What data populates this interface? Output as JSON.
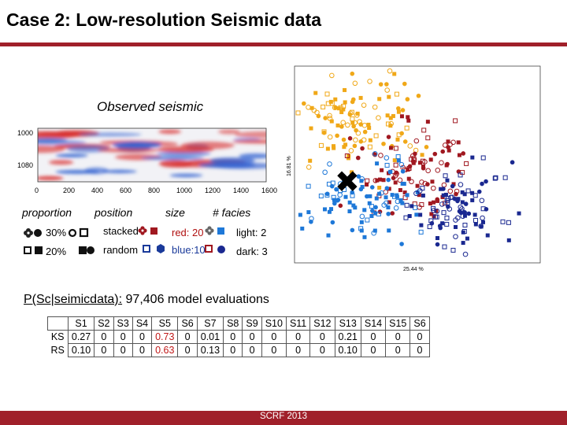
{
  "title": "Case 2: Low-resolution Seismic data",
  "observed_label": "Observed seismic",
  "seismic_axis": {
    "y_ticks": [
      "1000",
      "1080"
    ],
    "x_ticks": [
      "0",
      "200",
      "400",
      "600",
      "800",
      "1000",
      "1200",
      "1400",
      "1600"
    ]
  },
  "legend": {
    "headers": {
      "proportion": "proportion",
      "position": "position",
      "size": "size",
      "facies": "# facies"
    },
    "proportion": [
      "30%",
      "20%"
    ],
    "position": [
      "stacked",
      "random"
    ],
    "size": [
      "red: 20",
      "blue:10"
    ],
    "facies": [
      "light: 2",
      "dark: 3"
    ]
  },
  "scatter_axis": {
    "x_label": "25.44 %",
    "y_label": "16.81 %"
  },
  "pcs": {
    "label": "P(Sc|seimicdata):",
    "text": "97,406 model evaluations"
  },
  "table": {
    "columns": [
      "S1",
      "S2",
      "S3",
      "S4",
      "S5",
      "S6",
      "S7",
      "S8",
      "S9",
      "S10",
      "S11",
      "S12",
      "S13",
      "S14",
      "S15",
      "S6"
    ],
    "rows": [
      {
        "label": "KS",
        "values": [
          "0.27",
          "0",
          "0",
          "0",
          "0.73",
          "0",
          "0.01",
          "0",
          "0",
          "0",
          "0",
          "0",
          "0.21",
          "0",
          "0",
          "0"
        ]
      },
      {
        "label": "RS",
        "values": [
          "0.10",
          "0",
          "0",
          "0",
          "0.63",
          "0",
          "0.13",
          "0",
          "0",
          "0",
          "0",
          "0",
          "0.10",
          "0",
          "0",
          "0"
        ]
      }
    ],
    "highlight_col": 4,
    "highlight_color": "#c01818"
  },
  "footer": "SCRF 2013",
  "colors": {
    "accent": "#a0202a",
    "orange": "#f0a818",
    "darkred": "#a01820",
    "blue": "#1e78d8",
    "navy": "#1a2890"
  }
}
